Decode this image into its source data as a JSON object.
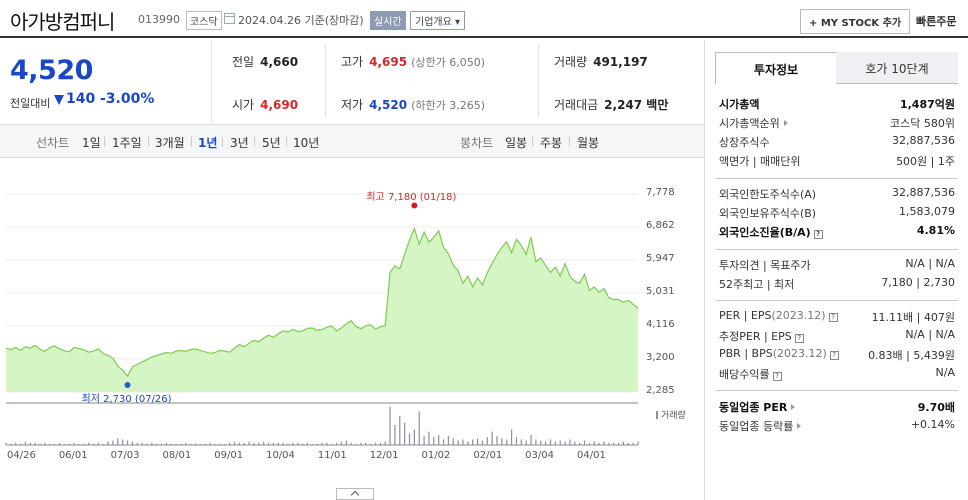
{
  "header": {
    "company": "아가방컴퍼니",
    "code": "013990",
    "market": "코스닥",
    "base_date": "2024.04.26  기준(장마감)",
    "realtime": "실시간",
    "overview": "기업개요 ▾",
    "mystock": "+ MY STOCK 추가",
    "quick_order": "빠른주문"
  },
  "price": {
    "current": "4,520",
    "change_label": "전일대비",
    "change": "140",
    "change_pct": "-3.00%"
  },
  "quote": {
    "prev_label": "전일",
    "prev": "4,660",
    "high_label": "고가",
    "high": "4,695",
    "upper_limit": "(상한가 6,050)",
    "volume_label": "거래량",
    "volume": "491,197",
    "open_label": "시가",
    "open": "4,690",
    "low_label": "저가",
    "low": "4,520",
    "lower_limit": "(하한가 3,265)",
    "amount_label": "거래대금",
    "amount": "2,247 백만"
  },
  "chart_tabs": {
    "line_label": "선차트",
    "line": [
      "1일",
      "1주일",
      "3개월",
      "1년",
      "3년",
      "5년",
      "10년"
    ],
    "selected": "1년",
    "candle_label": "봉차트",
    "candle": [
      "일봉",
      "주봉",
      "월봉"
    ]
  },
  "chart_data": {
    "type": "area",
    "title": "",
    "xlabel": "",
    "ylabel": "",
    "ylim": [
      2285,
      7778
    ],
    "yticks": [
      "7,778",
      "6,862",
      "5,947",
      "5,031",
      "4,116",
      "3,200",
      "2,285"
    ],
    "xticks": [
      "04/26",
      "06/01",
      "07/03",
      "08/01",
      "09/01",
      "10/04",
      "11/01",
      "12/01",
      "01/02",
      "02/01",
      "03/04",
      "04/01"
    ],
    "high_label": "최고 7,180 (01/18)",
    "low_label": "최저 2,730 (07/26)",
    "volume_legend": "거래량",
    "series": [
      {
        "values": [
          3500,
          3460,
          3520,
          3440,
          3540,
          3500,
          3580,
          3470,
          3410,
          3520,
          3560,
          3480,
          3430,
          3400,
          3520,
          3490,
          3460,
          3390,
          3420,
          3480,
          3350,
          3300,
          3220,
          3000,
          2890,
          2730,
          2980,
          3050,
          3120,
          3180,
          3260,
          3300,
          3340,
          3380,
          3360,
          3420,
          3440,
          3410,
          3460,
          3480,
          3430,
          3400,
          3360,
          3380,
          3440,
          3420,
          3390,
          3500,
          3600,
          3540,
          3640,
          3720,
          3680,
          3780,
          3860,
          3800,
          3900,
          3980,
          3950,
          4020,
          3960,
          3980,
          4050,
          4060,
          4000,
          4020,
          4080,
          4120,
          3980,
          4060,
          4180,
          4260,
          4100,
          4040,
          4120,
          4150,
          4030,
          4090,
          4130,
          5600,
          5780,
          5700,
          6100,
          6500,
          6820,
          6380,
          6720,
          6440,
          6580,
          6760,
          6300,
          6120,
          5800,
          5650,
          5300,
          5500,
          5200,
          5450,
          5250,
          5600,
          5850,
          6100,
          6300,
          6450,
          6150,
          6520,
          6350,
          6100,
          6580,
          5900,
          6000,
          5800,
          5600,
          5750,
          5500,
          5850,
          5500,
          5350,
          5300,
          5550,
          5100,
          5200,
          5050,
          5150,
          4900,
          4850,
          4850,
          4780,
          4820,
          4720,
          4600
        ]
      }
    ],
    "volume": [
      2,
      1,
      2,
      1,
      3,
      2,
      2,
      1,
      2,
      1,
      1,
      2,
      1,
      1,
      2,
      1,
      1,
      2,
      1,
      2,
      1,
      3,
      4,
      6,
      5,
      4,
      3,
      2,
      2,
      1,
      2,
      1,
      1,
      2,
      1,
      1,
      1,
      2,
      1,
      1,
      1,
      1,
      2,
      1,
      1,
      1,
      2,
      3,
      2,
      2,
      3,
      2,
      2,
      3,
      2,
      2,
      2,
      2,
      1,
      2,
      2,
      1,
      2,
      1,
      1,
      2,
      2,
      1,
      2,
      3,
      4,
      2,
      1,
      2,
      2,
      1,
      2,
      2,
      3,
      34,
      18,
      26,
      20,
      10,
      14,
      30,
      8,
      12,
      7,
      9,
      5,
      8,
      6,
      4,
      5,
      3,
      5,
      6,
      4,
      7,
      12,
      8,
      6,
      5,
      14,
      7,
      5,
      4,
      9,
      5,
      4,
      3,
      5,
      3,
      4,
      3,
      5,
      3,
      2,
      4,
      2,
      3,
      2,
      3,
      2,
      2,
      2,
      3,
      2,
      2,
      3
    ]
  },
  "right_panel": {
    "tab_invest": "투자정보",
    "tab_hoga": "호가 10단계",
    "market_cap_label": "시가총액",
    "market_cap": "1,487억원",
    "cap_rank_label": "시가총액순위",
    "cap_rank": "코스닥 580위",
    "shares_label": "상장주식수",
    "shares": "32,887,536",
    "par_label": "액면가 | 매매단위",
    "par": "500원 | 1주",
    "foreign_limit_label": "외국인한도주식수(A)",
    "foreign_limit": "32,887,536",
    "foreign_hold_label": "외국인보유주식수(B)",
    "foreign_hold": "1,583,079",
    "foreign_ratio_label": "외국인소진율(B/A)",
    "foreign_ratio": "4.81%",
    "opinion_label": "투자의견 | 목표주가",
    "opinion": "N/A | N/A",
    "week52_label": "52주최고 | 최저",
    "week52": "7,180 | 2,730",
    "per_label": "PER | EPS",
    "per_year": "(2023.12)",
    "per": "11.11배 | 407원",
    "est_per_label": "추정PER | EPS",
    "est_per": "N/A | N/A",
    "pbr_label": "PBR | BPS",
    "pbr_year": "(2023.12)",
    "pbr": "0.83배 | 5,439원",
    "div_label": "배당수익률",
    "div": "N/A",
    "sector_per_label": "동일업종 PER",
    "sector_per": "9.70배",
    "sector_rate_label": "동일업종 등락률",
    "sector_rate": "+0.14%"
  }
}
